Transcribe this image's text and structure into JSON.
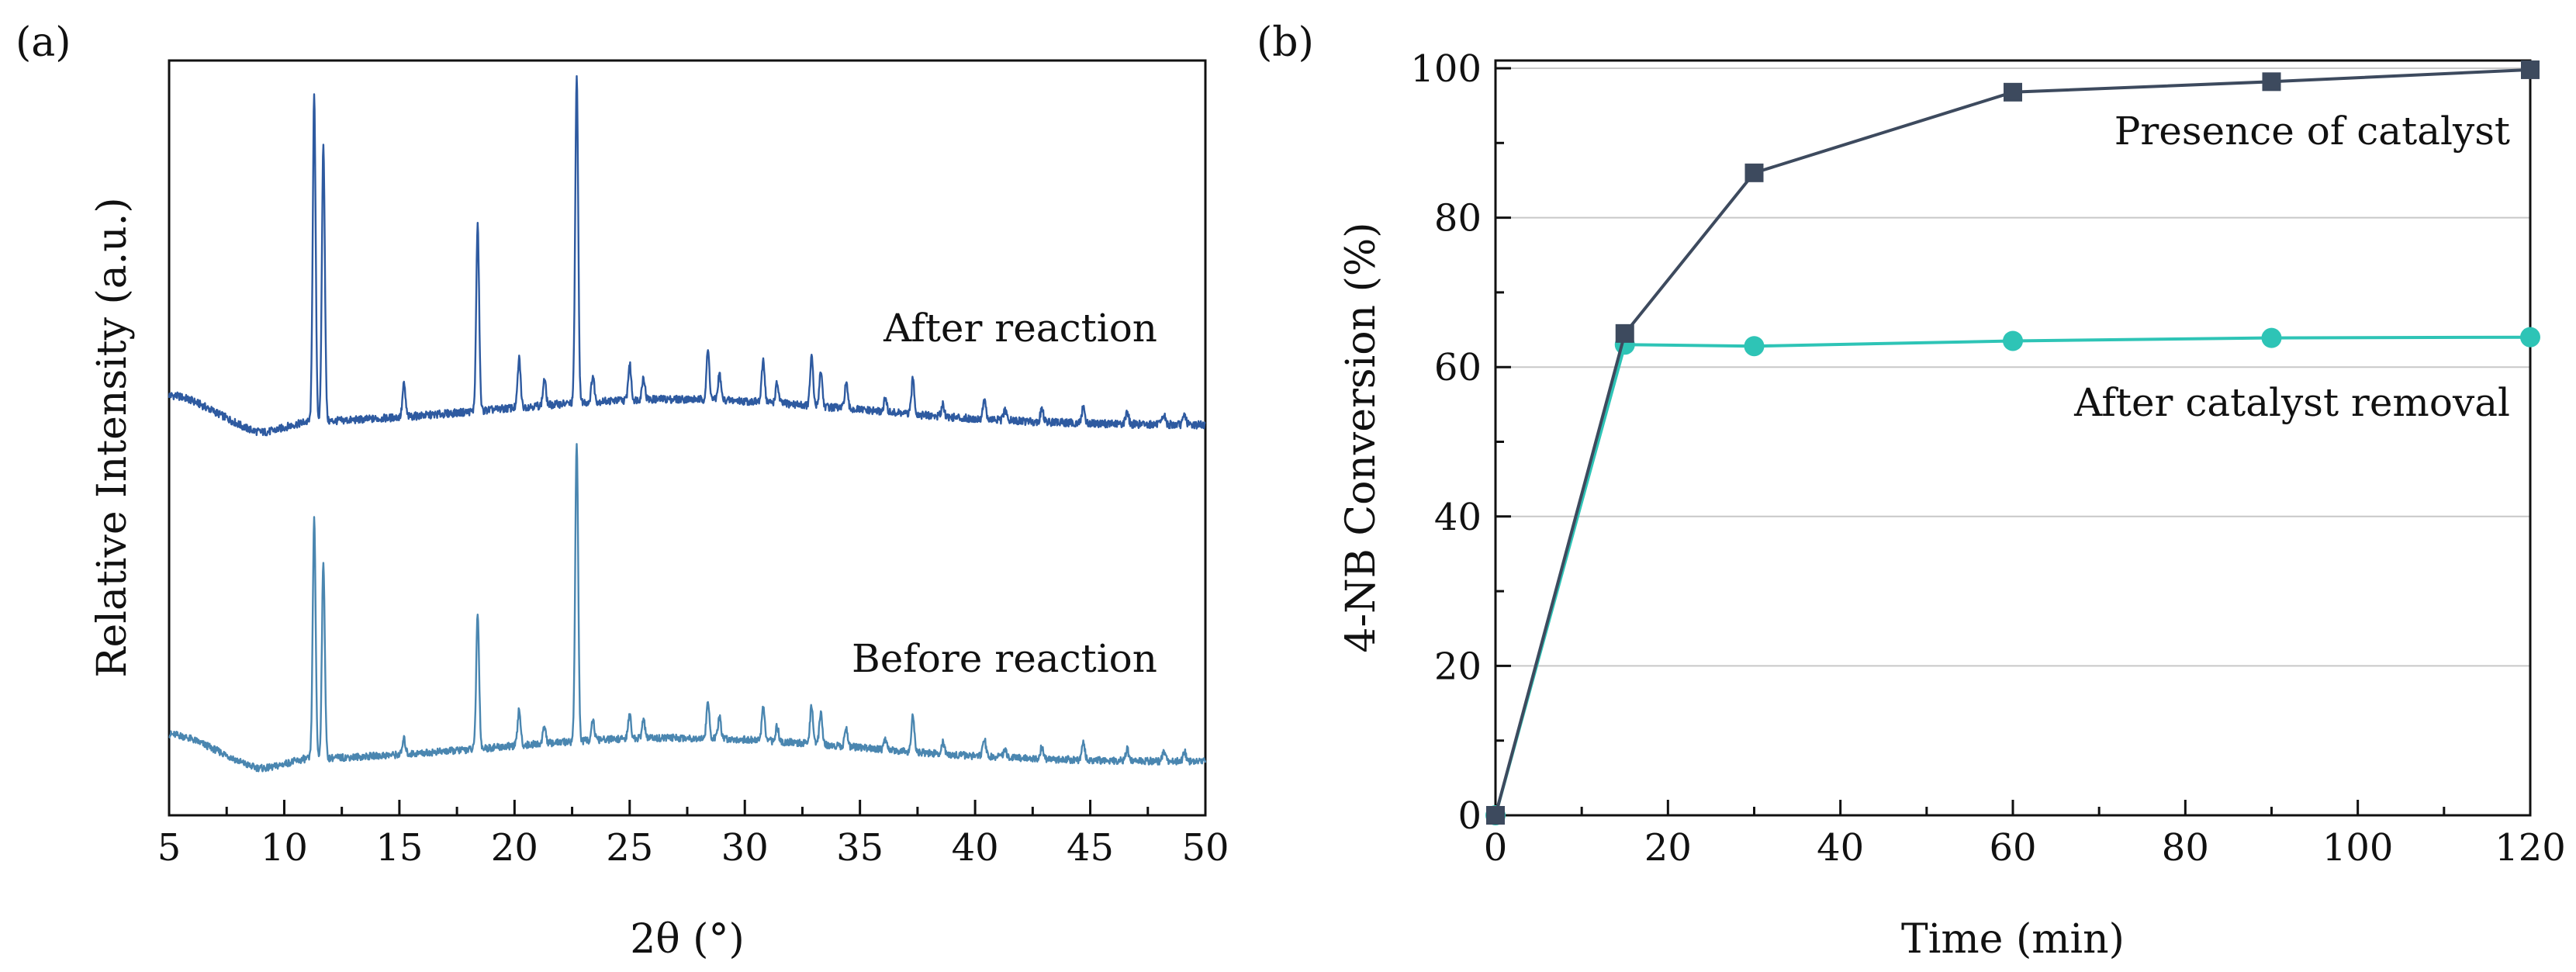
{
  "chart_data": [
    {
      "type": "line",
      "panel_label": "(a)",
      "title": "",
      "xlabel": "2θ (°)",
      "ylabel": "Relative Intensity (a.u.)",
      "xlim": [
        5,
        50
      ],
      "xticks": [
        "5",
        "10",
        "15",
        "20",
        "25",
        "30",
        "35",
        "40",
        "45",
        "50"
      ],
      "y_ticks_shown": false,
      "grid": false,
      "peaks_2theta": [
        11.3,
        11.7,
        15.2,
        18.4,
        20.2,
        21.3,
        22.7,
        23.4,
        25.0,
        25.6,
        28.4,
        28.9,
        30.8,
        31.4,
        32.9,
        33.3,
        34.4,
        36.1,
        37.3,
        38.6,
        40.4,
        41.3,
        42.9,
        44.7,
        46.6,
        48.2,
        49.1
      ],
      "series": [
        {
          "name": "After reaction",
          "color": "#2e5aa0",
          "peaks": [
            {
              "x": 11.3,
              "y": 100
            },
            {
              "x": 11.7,
              "y": 85
            },
            {
              "x": 15.2,
              "y": 10
            },
            {
              "x": 18.4,
              "y": 57
            },
            {
              "x": 20.2,
              "y": 15
            },
            {
              "x": 21.3,
              "y": 8
            },
            {
              "x": 22.7,
              "y": 100
            },
            {
              "x": 23.4,
              "y": 8
            },
            {
              "x": 25.0,
              "y": 11
            },
            {
              "x": 25.6,
              "y": 7
            },
            {
              "x": 28.4,
              "y": 15
            },
            {
              "x": 28.9,
              "y": 8
            },
            {
              "x": 30.8,
              "y": 13
            },
            {
              "x": 31.4,
              "y": 6
            },
            {
              "x": 32.9,
              "y": 15
            },
            {
              "x": 33.3,
              "y": 11
            },
            {
              "x": 34.4,
              "y": 8
            },
            {
              "x": 36.1,
              "y": 4
            },
            {
              "x": 37.3,
              "y": 11
            },
            {
              "x": 38.6,
              "y": 4
            },
            {
              "x": 40.4,
              "y": 6
            },
            {
              "x": 41.3,
              "y": 3
            },
            {
              "x": 42.9,
              "y": 4
            },
            {
              "x": 44.7,
              "y": 5
            },
            {
              "x": 46.6,
              "y": 4
            },
            {
              "x": 48.2,
              "y": 3
            },
            {
              "x": 49.1,
              "y": 3
            }
          ]
        },
        {
          "name": "Before reaction",
          "color": "#4a86b0",
          "peaks": [
            {
              "x": 11.3,
              "y": 80
            },
            {
              "x": 11.7,
              "y": 65
            },
            {
              "x": 15.2,
              "y": 5
            },
            {
              "x": 18.4,
              "y": 45
            },
            {
              "x": 20.2,
              "y": 12
            },
            {
              "x": 21.3,
              "y": 6
            },
            {
              "x": 22.7,
              "y": 100
            },
            {
              "x": 23.4,
              "y": 7
            },
            {
              "x": 25.0,
              "y": 8
            },
            {
              "x": 25.6,
              "y": 6
            },
            {
              "x": 28.4,
              "y": 12
            },
            {
              "x": 28.9,
              "y": 7
            },
            {
              "x": 30.8,
              "y": 11
            },
            {
              "x": 31.4,
              "y": 5
            },
            {
              "x": 32.9,
              "y": 13
            },
            {
              "x": 33.3,
              "y": 11
            },
            {
              "x": 34.4,
              "y": 7
            },
            {
              "x": 36.1,
              "y": 3
            },
            {
              "x": 37.3,
              "y": 12
            },
            {
              "x": 38.6,
              "y": 4
            },
            {
              "x": 40.4,
              "y": 6
            },
            {
              "x": 41.3,
              "y": 3
            },
            {
              "x": 42.9,
              "y": 4
            },
            {
              "x": 44.7,
              "y": 6
            },
            {
              "x": 46.6,
              "y": 4
            },
            {
              "x": 48.2,
              "y": 3
            },
            {
              "x": 49.1,
              "y": 3
            }
          ]
        }
      ]
    },
    {
      "type": "line",
      "panel_label": "(b)",
      "title": "",
      "xlabel": "Time (min)",
      "ylabel": "4-NB Conversion (%)",
      "xlim": [
        0,
        120
      ],
      "ylim": [
        0,
        100
      ],
      "xticks": [
        "0",
        "20",
        "40",
        "60",
        "80",
        "100",
        "120"
      ],
      "yticks": [
        "0",
        "20",
        "40",
        "60",
        "80",
        "100"
      ],
      "grid": true,
      "series": [
        {
          "name": "Presence of catalyst",
          "marker": "square",
          "color": "#3d4a5e",
          "x": [
            0,
            15,
            30,
            60,
            90,
            120
          ],
          "y": [
            0,
            64.5,
            86,
            96.8,
            98.2,
            99.8
          ]
        },
        {
          "name": "After catalyst removal",
          "marker": "circle",
          "color": "#2ec4b6",
          "x": [
            0,
            15,
            30,
            60,
            90,
            120
          ],
          "y": [
            0,
            63,
            62.8,
            63.5,
            63.9,
            64
          ]
        }
      ]
    }
  ]
}
